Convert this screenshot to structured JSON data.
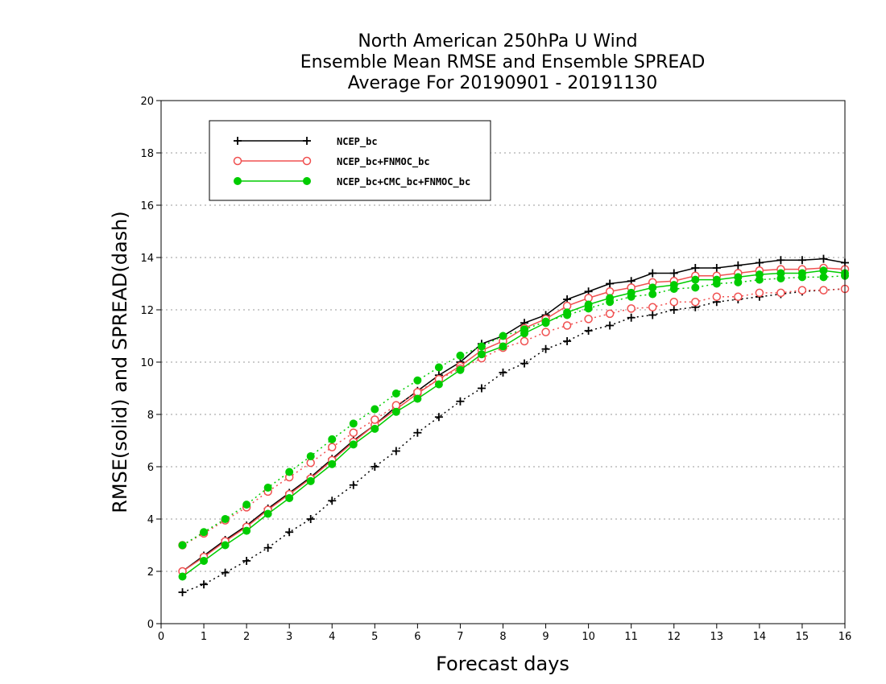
{
  "chart_data": {
    "type": "line",
    "title": [
      "North American 250hPa U Wind",
      "Ensemble Mean RMSE and Ensemble SPREAD",
      "Average For 20190901 - 20191130"
    ],
    "xlabel": "Forecast days",
    "ylabel": "RMSE(solid) and SPREAD(dash)",
    "xlim": [
      0,
      16
    ],
    "ylim": [
      0,
      20
    ],
    "xticks": [
      0,
      1,
      2,
      3,
      4,
      5,
      6,
      7,
      8,
      9,
      10,
      11,
      12,
      13,
      14,
      15,
      16
    ],
    "yticks": [
      0,
      2,
      4,
      6,
      8,
      10,
      12,
      14,
      16,
      18,
      20
    ],
    "grid": "horizontal dotted",
    "legend_position": "top-left",
    "x": [
      0.5,
      1,
      1.5,
      2,
      2.5,
      3,
      3.5,
      4,
      4.5,
      5,
      5.5,
      6,
      6.5,
      7,
      7.5,
      8,
      8.5,
      9,
      9.5,
      10,
      10.5,
      11,
      11.5,
      12,
      12.5,
      13,
      13.5,
      14,
      14.5,
      15,
      15.5,
      16
    ],
    "series": [
      {
        "name": "NCEP_bc",
        "color": "#000000",
        "marker": "plus",
        "rmse": [
          2.0,
          2.6,
          3.2,
          3.75,
          4.4,
          5.0,
          5.6,
          6.3,
          7.0,
          7.6,
          8.3,
          8.9,
          9.5,
          10.0,
          10.7,
          11.0,
          11.5,
          11.8,
          12.4,
          12.7,
          13.0,
          13.1,
          13.4,
          13.4,
          13.6,
          13.6,
          13.7,
          13.8,
          13.9,
          13.9,
          13.95,
          13.8
        ],
        "spread": [
          1.2,
          1.5,
          1.95,
          2.4,
          2.9,
          3.5,
          4.0,
          4.7,
          5.3,
          6.0,
          6.6,
          7.3,
          7.9,
          8.5,
          9.0,
          9.6,
          9.95,
          10.5,
          10.8,
          11.2,
          11.4,
          11.7,
          11.8,
          12.0,
          12.1,
          12.3,
          12.4,
          12.5,
          12.6,
          12.7,
          12.75,
          12.8
        ]
      },
      {
        "name": "NCEP_bc+FNMOC_bc",
        "color": "#f05050",
        "marker": "open-circle",
        "rmse": [
          2.0,
          2.55,
          3.15,
          3.7,
          4.35,
          4.95,
          5.55,
          6.25,
          6.95,
          7.6,
          8.2,
          8.8,
          9.35,
          9.85,
          10.45,
          10.8,
          11.3,
          11.65,
          12.15,
          12.45,
          12.7,
          12.85,
          13.05,
          13.1,
          13.3,
          13.3,
          13.4,
          13.5,
          13.55,
          13.55,
          13.6,
          13.55
        ],
        "spread": [
          3.0,
          3.45,
          3.95,
          4.45,
          5.05,
          5.6,
          6.15,
          6.75,
          7.3,
          7.8,
          8.35,
          8.85,
          9.35,
          9.75,
          10.15,
          10.55,
          10.8,
          11.15,
          11.4,
          11.65,
          11.85,
          12.05,
          12.1,
          12.3,
          12.3,
          12.5,
          12.5,
          12.65,
          12.65,
          12.75,
          12.75,
          12.8
        ]
      },
      {
        "name": "NCEP_bc+CMC_bc+FNMOC_bc",
        "color": "#00cc00",
        "marker": "filled-circle",
        "rmse": [
          1.8,
          2.4,
          3.0,
          3.55,
          4.2,
          4.8,
          5.45,
          6.1,
          6.85,
          7.45,
          8.1,
          8.6,
          9.15,
          9.7,
          10.3,
          10.6,
          11.1,
          11.5,
          11.9,
          12.2,
          12.45,
          12.65,
          12.85,
          12.95,
          13.15,
          13.15,
          13.25,
          13.35,
          13.4,
          13.4,
          13.5,
          13.4
        ],
        "spread": [
          3.0,
          3.5,
          4.0,
          4.55,
          5.2,
          5.8,
          6.4,
          7.05,
          7.65,
          8.2,
          8.8,
          9.3,
          9.8,
          10.25,
          10.6,
          11.0,
          11.25,
          11.55,
          11.8,
          12.05,
          12.3,
          12.5,
          12.6,
          12.8,
          12.85,
          13.0,
          13.05,
          13.15,
          13.2,
          13.25,
          13.25,
          13.3
        ]
      }
    ]
  }
}
